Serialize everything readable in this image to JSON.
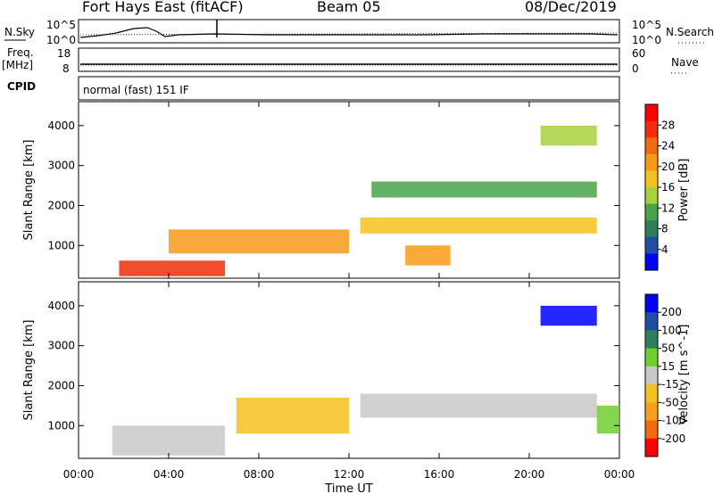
{
  "header": {
    "station": "Fort Hays East (fitACF)",
    "beam": "Beam 05",
    "date": "08/Dec/2019"
  },
  "noise_panel": {
    "left_label": "N.Sky",
    "right_label": "N.Search",
    "left_ticks": [
      "10^5",
      "10^0"
    ],
    "right_ticks": [
      "10^5",
      "10^0"
    ]
  },
  "freq_panel": {
    "left_label_line1": "Freq.",
    "left_label_line2": "[MHz]",
    "right_label": "Nave",
    "left_ticks": [
      "18",
      "8"
    ],
    "right_ticks": [
      "60",
      "0"
    ]
  },
  "cpid": {
    "label": "CPID",
    "value": "normal (fast) 151 IF"
  },
  "colors": {
    "power_scale": [
      "#0000ff",
      "#1f4fa0",
      "#2f7f5f",
      "#49a34b",
      "#a8d13c",
      "#f4c21e",
      "#f79a16",
      "#f46a12",
      "#f12e0a",
      "#ff0000"
    ],
    "velocity_scale": [
      "#0000ff",
      "#1f4fa0",
      "#2f7f5f",
      "#6fcf2f",
      "#c8c8c8",
      "#f4c21e",
      "#f7a11a",
      "#f46a12",
      "#ff0000"
    ]
  },
  "chart_data": [
    {
      "type": "heatmap",
      "title": "",
      "xlabel": "Time UT",
      "ylabel": "Slant Range [km]",
      "colorbar_label": "Power [dB]",
      "colorbar_ticks": [
        "28",
        "24",
        "20",
        "16",
        "12",
        "8",
        "4"
      ],
      "x_tick_labels": [
        "00:00",
        "04:00",
        "08:00",
        "12:00",
        "16:00",
        "20:00",
        "00:00"
      ],
      "y_tick_labels": [
        "4000",
        "3000",
        "2000",
        "1000"
      ],
      "xlim": [
        0,
        24
      ],
      "ylim": [
        180,
        4600
      ],
      "blobs": [
        {
          "t0": 1.8,
          "t1": 6.5,
          "r0": 230,
          "r1": 620,
          "value": 28
        },
        {
          "t0": 4.0,
          "t1": 12.0,
          "r0": 800,
          "r1": 1400,
          "value": 20
        },
        {
          "t0": 12.5,
          "t1": 23.0,
          "r0": 1300,
          "r1": 1700,
          "value": 18
        },
        {
          "t0": 14.5,
          "t1": 16.5,
          "r0": 500,
          "r1": 1000,
          "value": 22
        },
        {
          "t0": 13.0,
          "t1": 23.0,
          "r0": 2200,
          "r1": 2600,
          "value": 12
        },
        {
          "t0": 20.5,
          "t1": 23.0,
          "r0": 3500,
          "r1": 4000,
          "value": 14
        }
      ]
    },
    {
      "type": "heatmap",
      "title": "",
      "xlabel": "Time UT",
      "ylabel": "Slant Range [km]",
      "colorbar_label": "Velocity [m s^-1]",
      "colorbar_ticks": [
        "200",
        "100",
        "50",
        "15",
        "-15",
        "-50",
        "-100",
        "-200"
      ],
      "x_tick_labels": [
        "00:00",
        "04:00",
        "08:00",
        "12:00",
        "16:00",
        "20:00",
        "00:00"
      ],
      "y_tick_labels": [
        "4000",
        "3000",
        "2000",
        "1000"
      ],
      "xlim": [
        0,
        24
      ],
      "ylim": [
        180,
        4600
      ],
      "blobs": [
        {
          "t0": 1.5,
          "t1": 6.5,
          "r0": 250,
          "r1": 1000,
          "value": 0
        },
        {
          "t0": 7.0,
          "t1": 12.0,
          "r0": 800,
          "r1": 1700,
          "value": -40
        },
        {
          "t0": 12.5,
          "t1": 23.0,
          "r0": 1200,
          "r1": 1800,
          "value": 0
        },
        {
          "t0": 20.5,
          "t1": 23.0,
          "r0": 3500,
          "r1": 4000,
          "value": 200
        },
        {
          "t0": 23.0,
          "t1": 24.0,
          "r0": 800,
          "r1": 1500,
          "value": 50
        }
      ]
    }
  ]
}
